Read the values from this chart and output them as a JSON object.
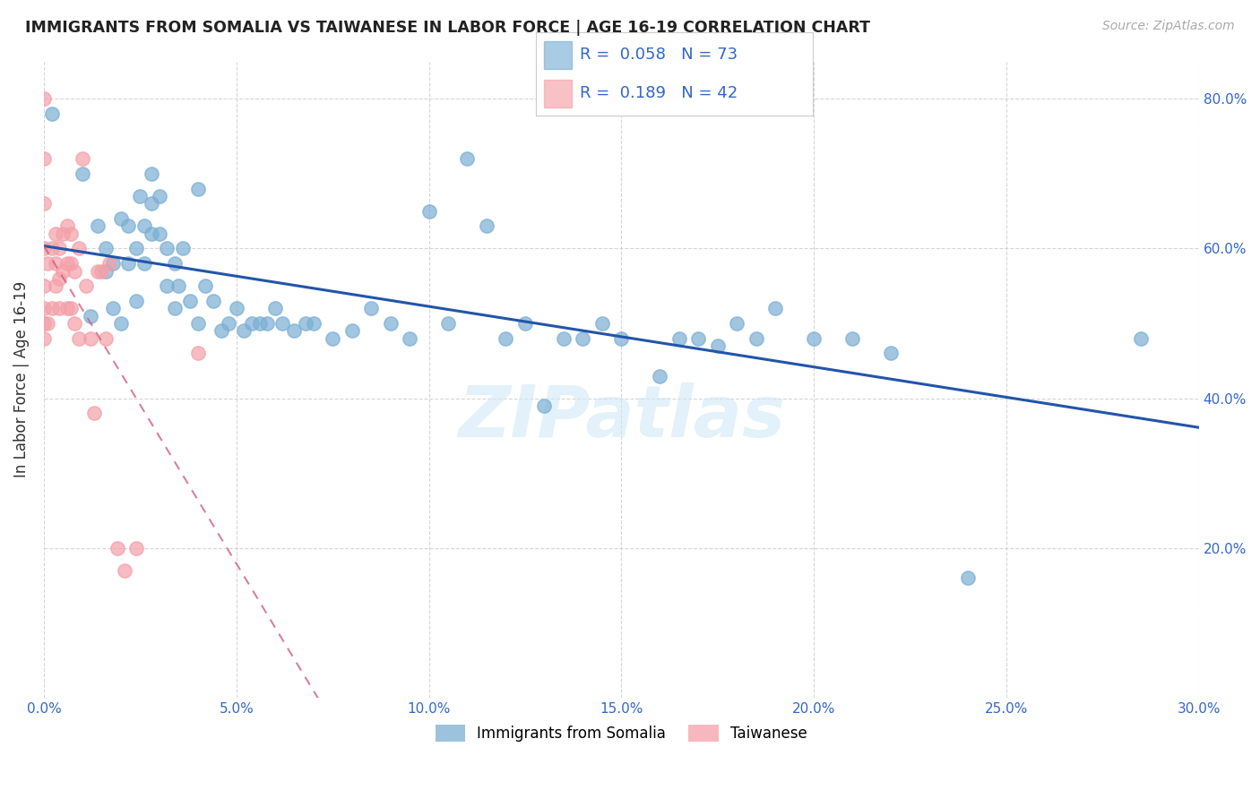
{
  "title": "IMMIGRANTS FROM SOMALIA VS TAIWANESE IN LABOR FORCE | AGE 16-19 CORRELATION CHART",
  "source": "Source: ZipAtlas.com",
  "ylabel_label": "In Labor Force | Age 16-19",
  "xlim": [
    0.0,
    0.3
  ],
  "ylim": [
    0.0,
    0.85
  ],
  "xticks": [
    0.0,
    0.05,
    0.1,
    0.15,
    0.2,
    0.25,
    0.3
  ],
  "xtick_labels": [
    "0.0%",
    "5.0%",
    "10.0%",
    "15.0%",
    "20.0%",
    "25.0%",
    "30.0%"
  ],
  "yticks_right": [
    0.2,
    0.4,
    0.6,
    0.8
  ],
  "ytick_labels_right": [
    "20.0%",
    "40.0%",
    "60.0%",
    "80.0%"
  ],
  "legend_somalia_R": "0.058",
  "legend_somalia_N": "73",
  "legend_taiwanese_R": "0.189",
  "legend_taiwanese_N": "42",
  "somalia_color": "#7BAFD4",
  "taiwanese_color": "#F4A0A8",
  "trendline_somalia_color": "#2255AA",
  "trendline_taiwanese_color": "#D06080",
  "background_color": "#FFFFFF",
  "watermark": "ZIPatlas",
  "somalia_x": [
    0.002,
    0.01,
    0.012,
    0.014,
    0.016,
    0.016,
    0.018,
    0.018,
    0.02,
    0.02,
    0.022,
    0.022,
    0.024,
    0.024,
    0.025,
    0.026,
    0.026,
    0.028,
    0.028,
    0.028,
    0.03,
    0.03,
    0.032,
    0.032,
    0.034,
    0.034,
    0.035,
    0.036,
    0.038,
    0.04,
    0.04,
    0.042,
    0.044,
    0.046,
    0.048,
    0.05,
    0.052,
    0.054,
    0.056,
    0.058,
    0.06,
    0.062,
    0.065,
    0.068,
    0.07,
    0.075,
    0.08,
    0.085,
    0.09,
    0.095,
    0.1,
    0.105,
    0.11,
    0.115,
    0.12,
    0.125,
    0.13,
    0.135,
    0.14,
    0.145,
    0.15,
    0.16,
    0.165,
    0.17,
    0.175,
    0.18,
    0.185,
    0.19,
    0.2,
    0.21,
    0.22,
    0.24,
    0.285
  ],
  "somalia_y": [
    0.78,
    0.7,
    0.51,
    0.63,
    0.6,
    0.57,
    0.58,
    0.52,
    0.64,
    0.5,
    0.63,
    0.58,
    0.6,
    0.53,
    0.67,
    0.63,
    0.58,
    0.7,
    0.66,
    0.62,
    0.67,
    0.62,
    0.6,
    0.55,
    0.58,
    0.52,
    0.55,
    0.6,
    0.53,
    0.68,
    0.5,
    0.55,
    0.53,
    0.49,
    0.5,
    0.52,
    0.49,
    0.5,
    0.5,
    0.5,
    0.52,
    0.5,
    0.49,
    0.5,
    0.5,
    0.48,
    0.49,
    0.52,
    0.5,
    0.48,
    0.65,
    0.5,
    0.72,
    0.63,
    0.48,
    0.5,
    0.39,
    0.48,
    0.48,
    0.5,
    0.48,
    0.43,
    0.48,
    0.48,
    0.47,
    0.5,
    0.48,
    0.52,
    0.48,
    0.48,
    0.46,
    0.16,
    0.48
  ],
  "taiwanese_x": [
    0.0,
    0.0,
    0.0,
    0.0,
    0.0,
    0.0,
    0.0,
    0.0,
    0.001,
    0.001,
    0.002,
    0.002,
    0.003,
    0.003,
    0.003,
    0.004,
    0.004,
    0.004,
    0.005,
    0.005,
    0.006,
    0.006,
    0.006,
    0.007,
    0.007,
    0.007,
    0.008,
    0.008,
    0.009,
    0.009,
    0.01,
    0.011,
    0.012,
    0.013,
    0.014,
    0.015,
    0.016,
    0.017,
    0.019,
    0.021,
    0.024,
    0.04
  ],
  "taiwanese_y": [
    0.8,
    0.72,
    0.66,
    0.6,
    0.55,
    0.52,
    0.5,
    0.48,
    0.58,
    0.5,
    0.6,
    0.52,
    0.62,
    0.58,
    0.55,
    0.6,
    0.56,
    0.52,
    0.62,
    0.57,
    0.63,
    0.58,
    0.52,
    0.62,
    0.58,
    0.52,
    0.57,
    0.5,
    0.6,
    0.48,
    0.72,
    0.55,
    0.48,
    0.38,
    0.57,
    0.57,
    0.48,
    0.58,
    0.2,
    0.17,
    0.2,
    0.46
  ]
}
